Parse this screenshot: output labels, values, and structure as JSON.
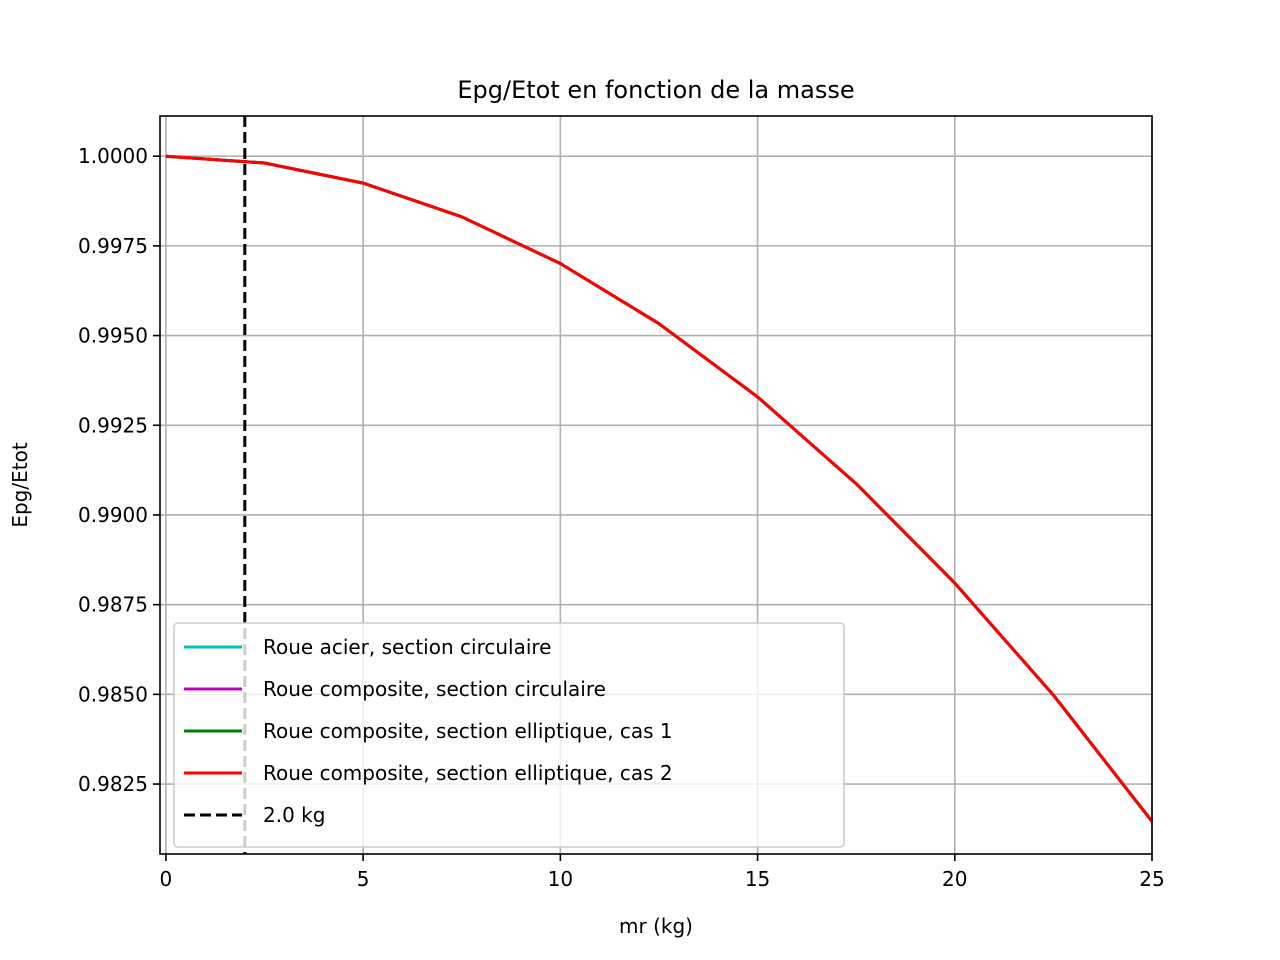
{
  "chart_data": {
    "type": "line",
    "title": "Epg/Etot en fonction de la masse",
    "xlabel": "mr (kg)",
    "ylabel": "Epg/Etot",
    "xlim": [
      -0.15,
      25
    ],
    "ylim": [
      0.98055,
      1.00112
    ],
    "xticks": [
      0,
      5,
      10,
      15,
      20,
      25
    ],
    "xtick_labels": [
      "0",
      "5",
      "10",
      "15",
      "20",
      "25"
    ],
    "yticks": [
      0.9825,
      0.985,
      0.9875,
      0.99,
      0.9925,
      0.995,
      0.9975,
      1.0
    ],
    "ytick_labels": [
      "0.9825",
      "0.9850",
      "0.9875",
      "0.9900",
      "0.9925",
      "0.9950",
      "0.9975",
      "1.0000"
    ],
    "grid": true,
    "legend_position": "lower-left",
    "x": [
      0,
      2.5,
      5,
      7.5,
      10,
      12.5,
      15,
      17.5,
      20,
      22.5,
      25
    ],
    "series": [
      {
        "name": "Roue acier, section circulaire",
        "color": "#00bfbf",
        "style": "solid",
        "values": [
          1.0,
          0.99981,
          0.99925,
          0.99831,
          0.99701,
          0.99533,
          0.99329,
          0.99087,
          0.9881,
          0.98498,
          0.98146
        ]
      },
      {
        "name": "Roue composite, section circulaire",
        "color": "#bf00bf",
        "style": "solid",
        "values": [
          1.0,
          0.99981,
          0.99925,
          0.99831,
          0.99701,
          0.99533,
          0.99329,
          0.99087,
          0.9881,
          0.98498,
          0.98146
        ]
      },
      {
        "name": "Roue composite, section elliptique, cas 1",
        "color": "#008000",
        "style": "solid",
        "values": [
          1.0,
          0.99981,
          0.99925,
          0.99831,
          0.99701,
          0.99533,
          0.99329,
          0.99087,
          0.9881,
          0.98498,
          0.98146
        ]
      },
      {
        "name": "Roue composite, section elliptique, cas 2",
        "color": "#ff0000",
        "style": "solid",
        "values": [
          1.0,
          0.99981,
          0.99925,
          0.99831,
          0.99701,
          0.99533,
          0.99329,
          0.99087,
          0.9881,
          0.98498,
          0.98146
        ]
      }
    ],
    "vlines": [
      {
        "name": "2.0 kg",
        "x": 2.0,
        "color": "#000000",
        "style": "dashed"
      }
    ]
  }
}
